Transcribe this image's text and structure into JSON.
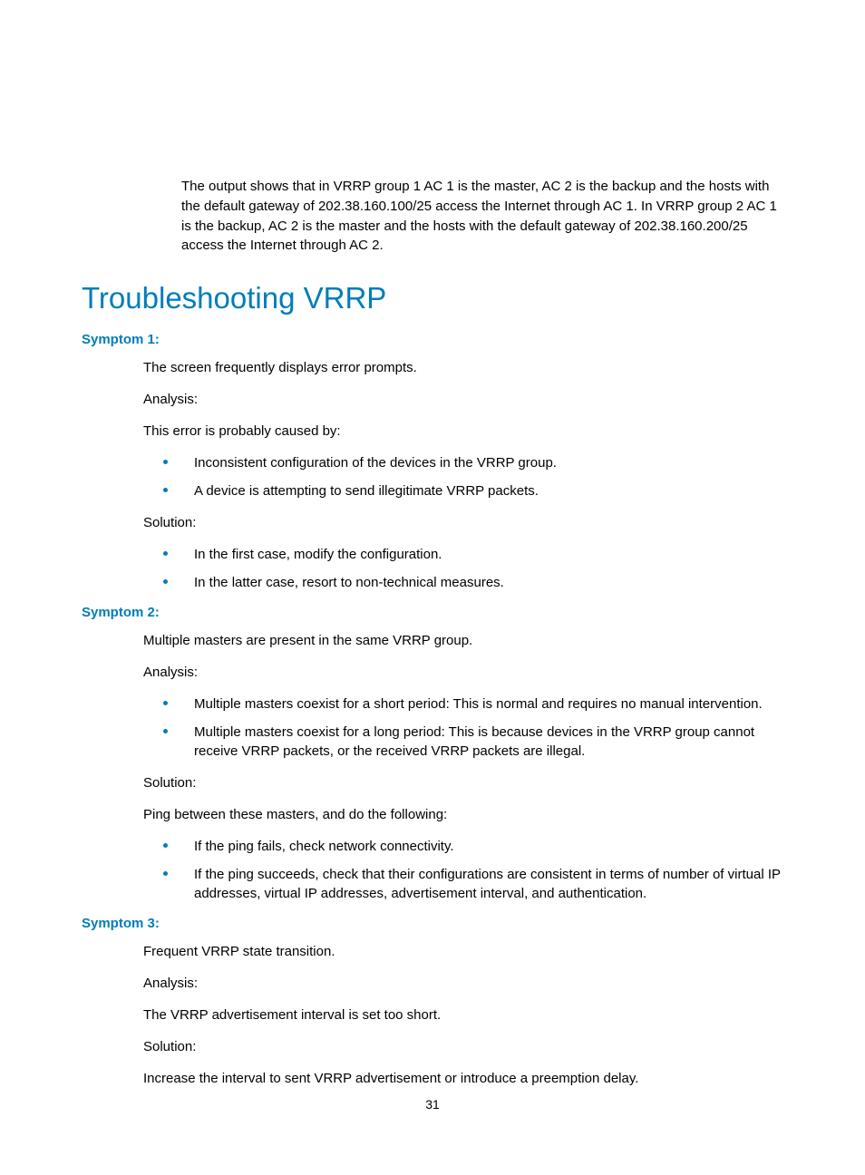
{
  "intro": "The output shows that in VRRP group 1 AC 1 is the master, AC 2 is the backup and the hosts with the default gateway of 202.38.160.100/25 access the Internet through AC 1. In VRRP group 2 AC 1 is the backup, AC 2 is the master and the hosts with the default gateway of 202.38.160.200/25 access the Internet through AC 2.",
  "heading": "Troubleshooting VRRP",
  "colors": {
    "accent": "#007dba",
    "text": "#000000",
    "background": "#ffffff"
  },
  "symptoms": [
    {
      "title": "Symptom 1:",
      "desc": "The screen frequently displays error prompts.",
      "analysis_label": "Analysis:",
      "analysis_text": "This error is probably caused by:",
      "analysis_bullets": [
        "Inconsistent configuration of the devices in the VRRP group.",
        "A device is attempting to send illegitimate VRRP packets."
      ],
      "solution_label": "Solution:",
      "solution_text": "",
      "solution_bullets": [
        "In the first case, modify the configuration.",
        "In the latter case, resort to non-technical measures."
      ]
    },
    {
      "title": "Symptom 2:",
      "desc": "Multiple masters are present in the same VRRP group.",
      "analysis_label": "Analysis:",
      "analysis_text": "",
      "analysis_bullets": [
        "Multiple masters coexist for a short period: This is normal and requires no manual intervention.",
        "Multiple masters coexist for a long period: This is because devices in the VRRP group cannot receive VRRP packets, or the received VRRP packets are illegal."
      ],
      "solution_label": "Solution:",
      "solution_text": "Ping between these masters, and do the following:",
      "solution_bullets": [
        "If the ping fails, check network connectivity.",
        "If the ping succeeds, check that their configurations are consistent in terms of number of virtual IP addresses, virtual IP addresses, advertisement interval, and authentication."
      ]
    },
    {
      "title": "Symptom 3:",
      "desc": "Frequent VRRP state transition.",
      "analysis_label": "Analysis:",
      "analysis_text": "The VRRP advertisement interval is set too short.",
      "analysis_bullets": [],
      "solution_label": "Solution:",
      "solution_text": "Increase the interval to sent VRRP advertisement or introduce a preemption delay.",
      "solution_bullets": []
    }
  ],
  "page_number": "31"
}
